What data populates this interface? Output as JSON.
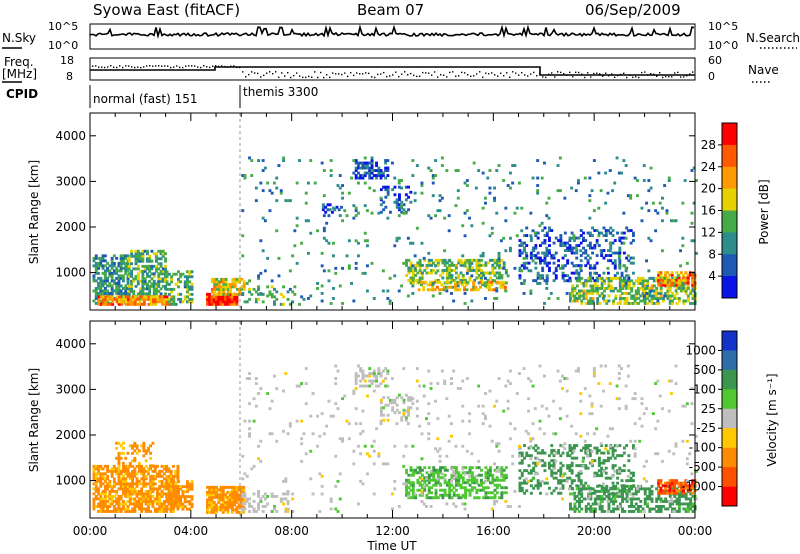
{
  "header": {
    "title": "Syowa East (fitACF)",
    "beam": "Beam 07",
    "date": "06/Sep/2009"
  },
  "status_panels": {
    "nsky_label": "N.Sky",
    "nsky_ticks": [
      "10^5",
      "10^0"
    ],
    "nsearch_label": "N.Search",
    "nsearch_ticks": [
      "10^5",
      "10^0"
    ],
    "freq_label_1": "Freq.",
    "freq_label_2": "[MHz]",
    "freq_ticks": [
      "18",
      "8"
    ],
    "nave_label": "Nave",
    "nave_ticks": [
      "60",
      "0"
    ],
    "cpid_label": "CPID",
    "cpid_segments": [
      {
        "name": "normal (fast) 151",
        "start_hour": 0,
        "end_hour": 6
      },
      {
        "name": "themis 3300",
        "start_hour": 6,
        "end_hour": 24
      }
    ]
  },
  "chart_data": [
    {
      "type": "heatmap",
      "title": "",
      "quantity": "power",
      "ylabel": "Slant Range [km]",
      "xlabel": "",
      "xlim": [
        0,
        24
      ],
      "ylim": [
        180,
        4500
      ],
      "yticks": [
        "1000",
        "2000",
        "3000",
        "4000"
      ],
      "colorbar_label": "Power [dB]",
      "colorbar_ticks": [
        "4",
        "8",
        "12",
        "16",
        "20",
        "24",
        "28"
      ],
      "colorbar_range": [
        0,
        30
      ],
      "colors": [
        "#0a14e6",
        "#1e5ab4",
        "#2d8c8c",
        "#46aa46",
        "#e6d200",
        "#ff9b00",
        "#ff5a00",
        "#ff0000"
      ],
      "regions": [
        {
          "x": [
            0.1,
            1.5
          ],
          "y": [
            300,
            1400
          ],
          "v": 10,
          "d": 0.65
        },
        {
          "x": [
            1.5,
            3.0
          ],
          "y": [
            400,
            1500
          ],
          "v": 12,
          "d": 0.6
        },
        {
          "x": [
            0.3,
            3.2
          ],
          "y": [
            280,
            500
          ],
          "v": 22,
          "d": 0.85
        },
        {
          "x": [
            3.0,
            4.0
          ],
          "y": [
            280,
            1000
          ],
          "v": 12,
          "d": 0.4
        },
        {
          "x": [
            4.6,
            5.8
          ],
          "y": [
            280,
            520
          ],
          "v": 27,
          "d": 0.95
        },
        {
          "x": [
            4.8,
            6.1
          ],
          "y": [
            500,
            850
          ],
          "v": 18,
          "d": 0.75
        },
        {
          "x": [
            6.0,
            8.5
          ],
          "y": [
            280,
            700
          ],
          "v": 12,
          "d": 0.2
        },
        {
          "x": [
            10.5,
            11.8
          ],
          "y": [
            3050,
            3450
          ],
          "v": 4,
          "d": 0.55
        },
        {
          "x": [
            9.2,
            10.0
          ],
          "y": [
            2300,
            2500
          ],
          "v": 4,
          "d": 0.45
        },
        {
          "x": [
            11.5,
            12.7
          ],
          "y": [
            2300,
            2900
          ],
          "v": 4,
          "d": 0.3
        },
        {
          "x": [
            12.5,
            16.5
          ],
          "y": [
            750,
            1300
          ],
          "v": 14,
          "d": 0.5
        },
        {
          "x": [
            13.0,
            16.5
          ],
          "y": [
            600,
            800
          ],
          "v": 18,
          "d": 0.55
        },
        {
          "x": [
            17.0,
            21.5
          ],
          "y": [
            800,
            2000
          ],
          "v": 5,
          "d": 0.25
        },
        {
          "x": [
            19.0,
            24.0
          ],
          "y": [
            300,
            900
          ],
          "v": 14,
          "d": 0.55
        },
        {
          "x": [
            22.5,
            24.0
          ],
          "y": [
            700,
            1000
          ],
          "v": 22,
          "d": 0.7
        },
        {
          "x": [
            6.0,
            24.0
          ],
          "y": [
            300,
            3500
          ],
          "v": 10,
          "d": 0.04
        }
      ]
    },
    {
      "type": "heatmap",
      "title": "",
      "quantity": "velocity",
      "ylabel": "Slant Range [km]",
      "xlabel": "Time UT",
      "xlim": [
        0,
        24
      ],
      "ylim": [
        180,
        4500
      ],
      "xticks": [
        "00:00",
        "04:00",
        "08:00",
        "12:00",
        "16:00",
        "20:00",
        "00:00"
      ],
      "yticks": [
        "1000",
        "2000",
        "3000",
        "4000"
      ],
      "colorbar_label": "Velocity [m s⁻¹]",
      "colorbar_ticks": [
        "1000",
        "500",
        "100",
        "25",
        "-25",
        "-100",
        "-500",
        "-1000"
      ],
      "colors": [
        "#1432c8",
        "#2d6eaa",
        "#3c9650",
        "#50c832",
        "#bebebe",
        "#ffc800",
        "#ff8c00",
        "#ff5000",
        "#ff0000"
      ],
      "regions": [
        {
          "x": [
            0.1,
            3.5
          ],
          "y": [
            300,
            1300
          ],
          "v": -150,
          "d": 0.7
        },
        {
          "x": [
            1.0,
            2.5
          ],
          "y": [
            1300,
            1800
          ],
          "v": -150,
          "d": 0.35
        },
        {
          "x": [
            3.0,
            4.0
          ],
          "y": [
            350,
            1000
          ],
          "v": -200,
          "d": 0.5
        },
        {
          "x": [
            4.6,
            6.1
          ],
          "y": [
            280,
            850
          ],
          "v": -150,
          "d": 0.8
        },
        {
          "x": [
            6.0,
            8.0
          ],
          "y": [
            300,
            700
          ],
          "v": 0,
          "d": 0.25
        },
        {
          "x": [
            10.5,
            11.8
          ],
          "y": [
            3050,
            3450
          ],
          "v": 0,
          "d": 0.5
        },
        {
          "x": [
            11.5,
            12.7
          ],
          "y": [
            2300,
            2900
          ],
          "v": 0,
          "d": 0.3
        },
        {
          "x": [
            12.5,
            16.5
          ],
          "y": [
            600,
            1300
          ],
          "v": 80,
          "d": 0.5
        },
        {
          "x": [
            17.0,
            21.5
          ],
          "y": [
            700,
            1800
          ],
          "v": 300,
          "d": 0.3
        },
        {
          "x": [
            19.0,
            24.0
          ],
          "y": [
            300,
            900
          ],
          "v": 200,
          "d": 0.5
        },
        {
          "x": [
            22.5,
            24.0
          ],
          "y": [
            700,
            1000
          ],
          "v": -700,
          "d": 0.7
        },
        {
          "x": [
            6.0,
            24.0
          ],
          "y": [
            300,
            3500
          ],
          "v": 0,
          "d": 0.04
        }
      ]
    }
  ]
}
